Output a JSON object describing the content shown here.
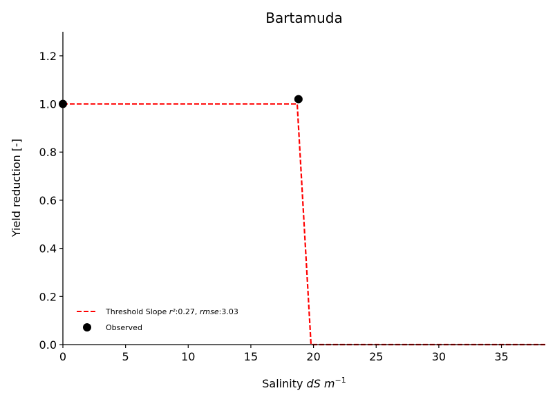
{
  "chart_data": {
    "type": "line",
    "title": "Bartamuda",
    "xlabel": {
      "prefix": "Salinity ",
      "italic": "dS m",
      "superscript": "−1"
    },
    "ylabel": "Yield reduction [-]",
    "xlim": [
      0,
      38.5
    ],
    "ylim": [
      0,
      1.3
    ],
    "xticks": [
      0,
      5,
      10,
      15,
      20,
      25,
      30,
      35
    ],
    "xtick_labels": [
      "0",
      "5",
      "10",
      "15",
      "20",
      "25",
      "30",
      "35"
    ],
    "yticks": [
      0.0,
      0.2,
      0.4,
      0.6,
      0.8,
      1.0,
      1.2
    ],
    "ytick_labels": [
      "0.0",
      "0.2",
      "0.4",
      "0.6",
      "0.8",
      "1.0",
      "1.2"
    ],
    "grid": false,
    "legend_position": "lower-left",
    "series": [
      {
        "name": "Threshold Slope",
        "kind": "line",
        "style": "dashed",
        "color": "#ff0000",
        "points": [
          [
            0,
            1.0
          ],
          [
            18.7,
            1.0
          ],
          [
            19.8,
            0.0
          ],
          [
            38.5,
            0.0
          ]
        ],
        "stats": {
          "r2": "0.27",
          "rmse": "3.03"
        }
      },
      {
        "name": "Observed",
        "kind": "scatter",
        "color": "#000000",
        "points": [
          [
            0,
            1.0
          ],
          [
            18.8,
            1.02
          ]
        ]
      }
    ]
  },
  "legend": {
    "line_label": {
      "prefix": "Threshold Slope ",
      "r2_sym": "r²",
      "r2_val": ":0.27, ",
      "rmse_sym": "rmse",
      "rmse_val": ":3.03"
    },
    "scatter_label": "Observed"
  }
}
